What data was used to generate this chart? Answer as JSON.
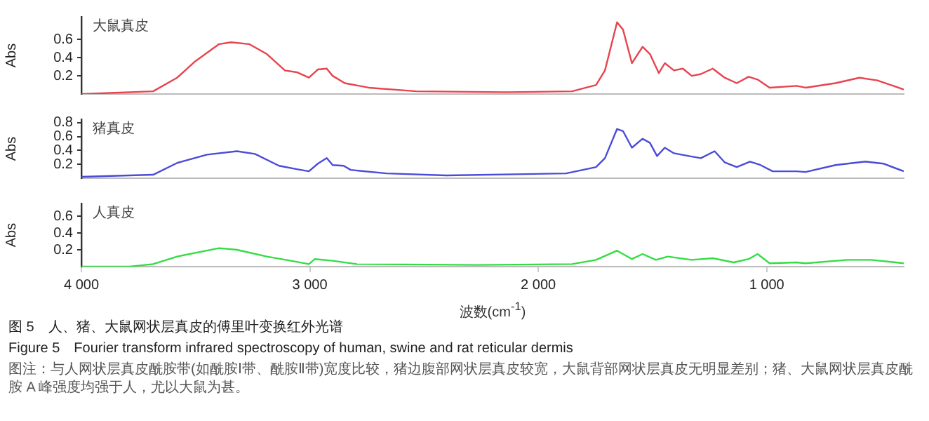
{
  "chart_data": [
    {
      "type": "line",
      "ylabel": "Abs",
      "annotations": [
        "大鼠真皮"
      ],
      "xlim": [
        4000,
        400
      ],
      "ylim": [
        0,
        0.85
      ],
      "yticks": [
        0.2,
        0.4,
        0.6
      ],
      "tick_labels": "y",
      "grid": false,
      "legend": false,
      "marker": "none",
      "series": [
        {
          "color": "#e8434e",
          "x": [
            4000,
            3686,
            3581,
            3502,
            3397,
            3345,
            3266,
            3188,
            3109,
            3057,
            3004,
            2965,
            2926,
            2900,
            2847,
            2742,
            2533,
            2140,
            1852,
            1747,
            1708,
            1655,
            1629,
            1590,
            1543,
            1511,
            1472,
            1446,
            1406,
            1367,
            1328,
            1288,
            1236,
            1184,
            1131,
            1079,
            1040,
            987,
            869,
            830,
            699,
            594,
            515,
            400
          ],
          "values": [
            0,
            0.03,
            0.18,
            0.36,
            0.55,
            0.57,
            0.55,
            0.44,
            0.26,
            0.24,
            0.18,
            0.27,
            0.28,
            0.2,
            0.12,
            0.07,
            0.03,
            0.02,
            0.03,
            0.1,
            0.26,
            0.79,
            0.71,
            0.34,
            0.52,
            0.44,
            0.23,
            0.34,
            0.26,
            0.28,
            0.2,
            0.22,
            0.28,
            0.18,
            0.12,
            0.19,
            0.16,
            0.07,
            0.09,
            0.07,
            0.12,
            0.18,
            0.15,
            0.05
          ]
        }
      ]
    },
    {
      "type": "line",
      "ylabel": "Abs",
      "annotations": [
        "猪真皮"
      ],
      "xlim": [
        4000,
        400
      ],
      "ylim": [
        0,
        0.85
      ],
      "yticks": [
        0.2,
        0.4,
        0.6,
        0.8
      ],
      "tick_labels": "y",
      "grid": false,
      "legend": false,
      "marker": "none",
      "series": [
        {
          "color": "#4b4bd8",
          "x": [
            4000,
            3686,
            3581,
            3450,
            3319,
            3240,
            3135,
            3057,
            3004,
            2965,
            2926,
            2900,
            2852,
            2821,
            2664,
            2402,
            1878,
            1747,
            1708,
            1655,
            1629,
            1590,
            1543,
            1511,
            1480,
            1446,
            1406,
            1341,
            1288,
            1228,
            1184,
            1131,
            1073,
            1027,
            974,
            869,
            830,
            699,
            568,
            489,
            400
          ],
          "values": [
            0.02,
            0.05,
            0.22,
            0.34,
            0.39,
            0.35,
            0.18,
            0.13,
            0.1,
            0.21,
            0.29,
            0.19,
            0.18,
            0.12,
            0.07,
            0.04,
            0.07,
            0.16,
            0.29,
            0.71,
            0.68,
            0.44,
            0.57,
            0.51,
            0.32,
            0.44,
            0.36,
            0.32,
            0.29,
            0.39,
            0.23,
            0.16,
            0.24,
            0.19,
            0.1,
            0.1,
            0.09,
            0.19,
            0.24,
            0.21,
            0.1
          ]
        }
      ]
    },
    {
      "type": "line",
      "xlabel": "波数(cm$^{-1}$)",
      "ylabel": "Abs",
      "annotations": [
        "人真皮",
        "图 5　人、猪、大鼠网状层真皮的傅里叶变换红外光谱",
        "Figure 5　Fourier transform infrared spectroscopy of human, swine and rat reticular dermis",
        "图注：与人网状层真皮酰胺带(如酰胺Ⅰ带、酰胺Ⅱ带)宽度比较，猪边腹部网状层真皮较宽，大鼠背部网状层真皮无明显差别；猪、大鼠网状层真皮酰胺 A 峰强度均强于人，尤以大鼠为甚。"
      ],
      "xlim": [
        4000,
        400
      ],
      "xticks": [
        {
          "value": 4000,
          "label": "4 000"
        },
        {
          "value": 3000,
          "label": "3 000"
        },
        {
          "value": 2000,
          "label": "2 000"
        },
        {
          "value": 1000,
          "label": "1 000"
        }
      ],
      "ylim": [
        0,
        0.75
      ],
      "yticks": [
        0.2,
        0.4,
        0.6
      ],
      "grid": false,
      "legend": false,
      "marker": "none",
      "series": [
        {
          "color": "#33dd44",
          "x": [
            4000,
            3790,
            3686,
            3581,
            3397,
            3319,
            3188,
            3083,
            3004,
            2978,
            2900,
            2795,
            2271,
            1852,
            1747,
            1655,
            1590,
            1543,
            1485,
            1433,
            1328,
            1236,
            1144,
            1079,
            1040,
            987,
            869,
            830,
            647,
            542,
            400
          ],
          "values": [
            0,
            0,
            0.03,
            0.12,
            0.22,
            0.2,
            0.12,
            0.07,
            0.03,
            0.09,
            0.07,
            0.03,
            0.02,
            0.03,
            0.08,
            0.19,
            0.09,
            0.15,
            0.08,
            0.12,
            0.08,
            0.1,
            0.05,
            0.09,
            0.15,
            0.04,
            0.05,
            0.04,
            0.08,
            0.08,
            0.04
          ]
        }
      ]
    }
  ]
}
